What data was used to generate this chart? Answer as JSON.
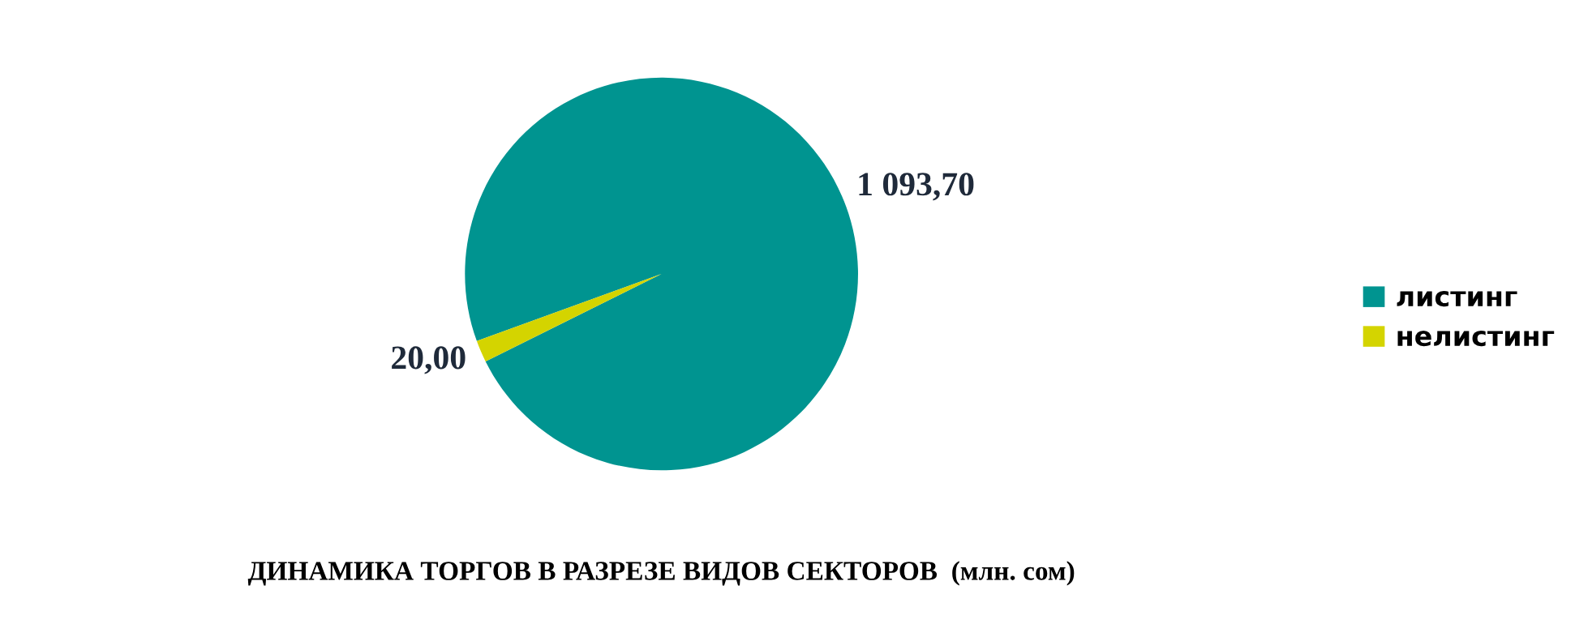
{
  "chart_data": {
    "type": "pie",
    "title": "ДИНАМИКА ТОРГОВ В РАЗРЕЗЕ ВИДОВ СЕКТОРОВ  (млн. сом)",
    "categories": [
      "листинг",
      "нелистинг"
    ],
    "values": [
      1093.7,
      20.0
    ],
    "colors": [
      "#009490",
      "#d4d400"
    ],
    "value_labels": [
      "1 093,70",
      "20,00"
    ],
    "legend": "right"
  }
}
